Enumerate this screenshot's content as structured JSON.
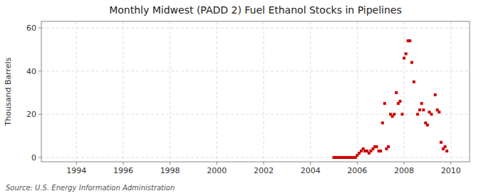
{
  "chart_data": {
    "type": "scatter",
    "title": "Monthly Midwest (PADD 2) Fuel Ethanol Stocks in Pipelines",
    "ylabel": "Thousand Barrels",
    "source": "Source: U.S. Energy Information Administration",
    "xlim": [
      1992.5,
      2010.8
    ],
    "ylim": [
      -2,
      63
    ],
    "xticks": [
      1994,
      1996,
      1998,
      2000,
      2002,
      2004,
      2006,
      2008,
      2010
    ],
    "yticks": [
      0,
      20,
      40,
      60
    ],
    "grid": true,
    "series": [
      {
        "type": "line",
        "color": "#cc0000",
        "line_style": "solid",
        "x": [
          2005.0,
          2005.75
        ],
        "values": [
          0,
          0
        ]
      },
      {
        "type": "scatter",
        "color": "#cc0000",
        "marker": "square",
        "x": [
          2005.0,
          2005.08,
          2005.17,
          2005.25,
          2005.33,
          2005.42,
          2005.5,
          2005.58,
          2005.67,
          2005.75,
          2005.83,
          2005.92,
          2006.0,
          2006.08,
          2006.17,
          2006.25,
          2006.33,
          2006.42,
          2006.5,
          2006.58,
          2006.67,
          2006.75,
          2006.83,
          2006.92,
          2007.0,
          2007.08,
          2007.17,
          2007.25,
          2007.33,
          2007.42,
          2007.5,
          2007.58,
          2007.67,
          2007.75,
          2007.83,
          2007.92,
          2008.0,
          2008.08,
          2008.17,
          2008.25,
          2008.33,
          2008.42,
          2008.58,
          2008.67,
          2008.75,
          2008.83,
          2008.92,
          2009.0,
          2009.08,
          2009.17,
          2009.33,
          2009.42,
          2009.5,
          2009.58,
          2009.67,
          2009.75,
          2009.83
        ],
        "values": [
          0,
          0,
          0,
          0,
          0,
          0,
          0,
          0,
          0,
          0,
          0,
          0,
          1,
          2,
          3,
          4,
          3,
          3,
          2,
          3,
          4,
          5,
          5,
          3,
          3,
          16,
          25,
          4,
          5,
          20,
          19,
          20,
          30,
          25,
          26,
          20,
          46,
          48,
          54,
          54,
          44,
          35,
          20,
          22,
          25,
          22,
          16,
          15,
          21,
          20,
          29,
          22,
          21,
          7,
          4,
          5,
          3
        ]
      }
    ]
  }
}
